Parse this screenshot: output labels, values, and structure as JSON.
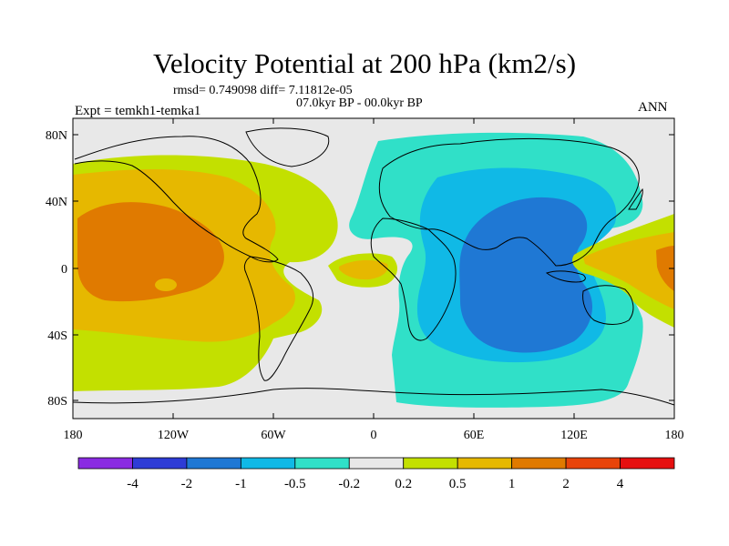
{
  "figure": {
    "title": "Velocity Potential at 200 hPa (km2/s)",
    "stats": "rmsd= 0.749098 diff= 7.11812e-05",
    "period": "07.0kyr BP - 00.0kyr BP",
    "experiment": "Expt = temkh1-temka1",
    "season": "ANN"
  },
  "map": {
    "lat_ticks": [
      "80N",
      "40N",
      "0",
      "40S",
      "80S"
    ],
    "lon_ticks": [
      "180",
      "120W",
      "60W",
      "0",
      "60E",
      "120E",
      "180"
    ],
    "background_color": "#e8e8e8",
    "coastline_color": "#000000"
  },
  "colorbar": {
    "colors": [
      "#8a2be2",
      "#2e3cd6",
      "#1f78d4",
      "#10b9e6",
      "#30e0c8",
      "#e8e8e8",
      "#c3e000",
      "#e6b800",
      "#e07a00",
      "#e8440a",
      "#e61010"
    ],
    "labels": [
      "-4",
      "-2",
      "-1",
      "-0.5",
      "-0.2",
      "0.2",
      "0.5",
      "1",
      "2",
      "4"
    ]
  }
}
